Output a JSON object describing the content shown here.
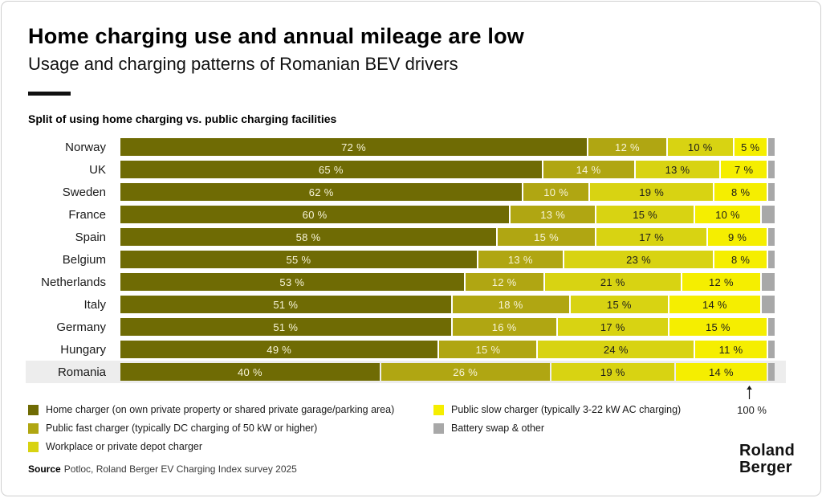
{
  "header": {
    "title": "Home charging use and annual mileage are low",
    "subtitle": "Usage and charging patterns of Romanian BEV drivers"
  },
  "section": {
    "title": "Split of using home charging vs. public charging facilities"
  },
  "chart_data": {
    "type": "bar",
    "stacked": true,
    "orientation": "horizontal",
    "xlim": [
      0,
      100
    ],
    "grid": false,
    "value_suffix": " %",
    "categories": [
      "Norway",
      "UK",
      "Sweden",
      "France",
      "Spain",
      "Belgium",
      "Netherlands",
      "Italy",
      "Germany",
      "Hungary",
      "Romania"
    ],
    "highlighted_category": "Romania",
    "total_annotation": "100 %",
    "series": [
      {
        "name": "Home charger (on own private property or shared private garage/parking area)",
        "color": "#6f6b04",
        "label_color": "#f7f4d8",
        "show_labels": true,
        "values": [
          72,
          65,
          62,
          60,
          58,
          55,
          53,
          51,
          51,
          49,
          40
        ]
      },
      {
        "name": "Public fast charger (typically DC charging of 50 kW or higher)",
        "color": "#b0a612",
        "label_color": "#f7f4d8",
        "show_labels": true,
        "values": [
          12,
          14,
          10,
          13,
          15,
          13,
          12,
          18,
          16,
          15,
          26
        ]
      },
      {
        "name": "Workplace or private depot charger",
        "color": "#d8d312",
        "label_color": "#1d1d1b",
        "show_labels": true,
        "values": [
          10,
          13,
          19,
          15,
          17,
          23,
          21,
          15,
          17,
          24,
          19
        ]
      },
      {
        "name": "Public slow charger (typically 3-22 kW AC charging)",
        "color": "#f5ee00",
        "label_color": "#1d1d1b",
        "show_labels": true,
        "values": [
          5,
          7,
          8,
          10,
          9,
          8,
          12,
          14,
          15,
          11,
          14
        ]
      },
      {
        "name": "Battery swap & other",
        "color": "#a8a8a8",
        "label_color": null,
        "show_labels": false,
        "values": [
          1,
          1,
          1,
          2,
          1,
          1,
          2,
          2,
          1,
          1,
          1
        ]
      }
    ]
  },
  "legend": {
    "columns": [
      [
        0,
        1,
        2
      ],
      [
        3,
        4
      ]
    ]
  },
  "footer": {
    "source_label": "Source",
    "source_text": "Potloc, Roland Berger EV Charging Index survey 2025"
  },
  "logo": {
    "line1": "Roland",
    "line2": "Berger"
  }
}
